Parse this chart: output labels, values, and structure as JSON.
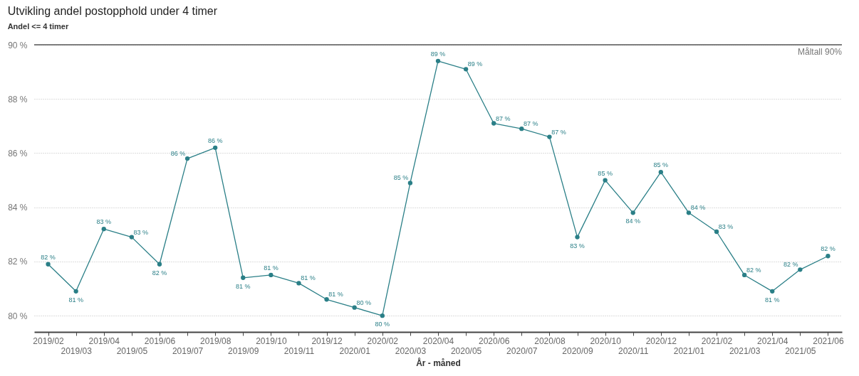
{
  "chart_data": {
    "type": "line",
    "title": "Utvikling andel postopphold under 4 timer",
    "subtitle": "Andel <= 4 timer",
    "xlabel": "År - måned",
    "categories": [
      "2019/02",
      "2019/03",
      "2019/04",
      "2019/05",
      "2019/06",
      "2019/07",
      "2019/08",
      "2019/09",
      "2019/10",
      "2019/11",
      "2019/12",
      "2020/01",
      "2020/02",
      "2020/03",
      "2020/04",
      "2020/05",
      "2020/06",
      "2020/07",
      "2020/08",
      "2020/09",
      "2020/10",
      "2020/11",
      "2020/12",
      "2021/01",
      "2021/02",
      "2021/03",
      "2021/04",
      "2021/05",
      "2021/06"
    ],
    "series": [
      {
        "color": "#2a7f87",
        "values": [
          81.9,
          80.9,
          83.2,
          82.9,
          81.9,
          85.8,
          86.2,
          81.4,
          81.5,
          81.2,
          80.6,
          80.3,
          80.0,
          84.9,
          89.4,
          89.1,
          87.1,
          86.9,
          86.6,
          82.9,
          85.0,
          83.8,
          85.3,
          83.8,
          83.1,
          81.5,
          80.9,
          81.7,
          82.2
        ],
        "value_labels": [
          "82 %",
          "81 %",
          "83 %",
          "83 %",
          "82 %",
          "86 %",
          "86 %",
          "81 %",
          "81 %",
          "81 %",
          "81 %",
          "80 %",
          "80 %",
          "85 %",
          "89 %",
          "89 %",
          "87 %",
          "87 %",
          "87 %",
          "83 %",
          "85 %",
          "84 %",
          "85 %",
          "84 %",
          "83 %",
          "82 %",
          "81 %",
          "82 %",
          "82 %"
        ]
      }
    ],
    "ylim": [
      79.4,
      90
    ],
    "yticks": [
      {
        "value": 80,
        "label": "80 %"
      },
      {
        "value": 82,
        "label": "82 %"
      },
      {
        "value": 84,
        "label": "84 %"
      },
      {
        "value": 86,
        "label": "86 %"
      },
      {
        "value": 88,
        "label": "88 %"
      },
      {
        "value": 90,
        "label": "90 %"
      }
    ],
    "grid": "y",
    "marker": "circle",
    "line_style": "solid",
    "ref_lines": [
      {
        "axis": "y",
        "value": 90,
        "label": "Måltall 90%",
        "color": "#555555",
        "line_style": "solid"
      }
    ]
  }
}
